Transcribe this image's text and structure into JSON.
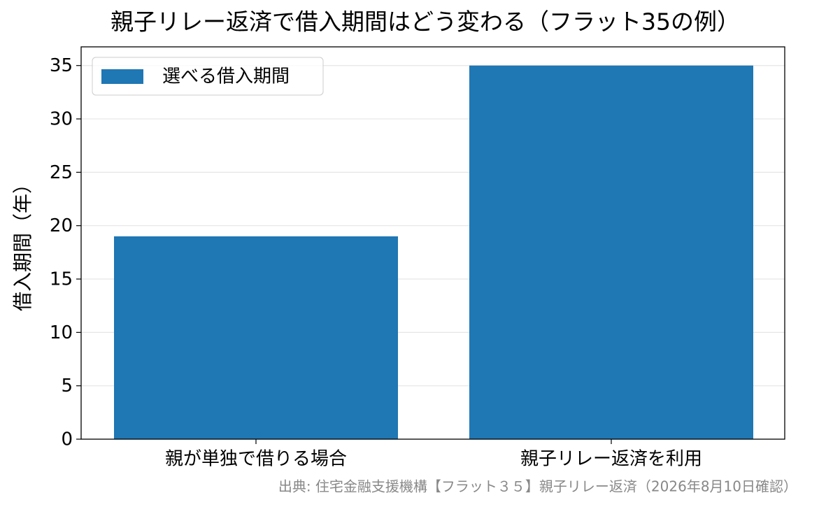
{
  "chart_data": {
    "type": "bar",
    "title": "親子リレー返済で借入期間はどう変わる（フラット35の例）",
    "y_label": "借入期間（年）",
    "source": "出典: 住宅金融支援機構【フラット３５】親子リレー返済（2026年8月10日確認）",
    "categories": [
      "親が単独で借りる場合",
      "親子リレー返済を利用"
    ],
    "series": [
      {
        "name": "選べる借入期間",
        "color": "#1f77b4",
        "values": [
          19,
          35
        ]
      }
    ],
    "ylim": [
      0,
      36.75
    ],
    "yticks": [
      0,
      5,
      10,
      15,
      20,
      25,
      30,
      35
    ],
    "grid": true,
    "legend": "upper left"
  }
}
